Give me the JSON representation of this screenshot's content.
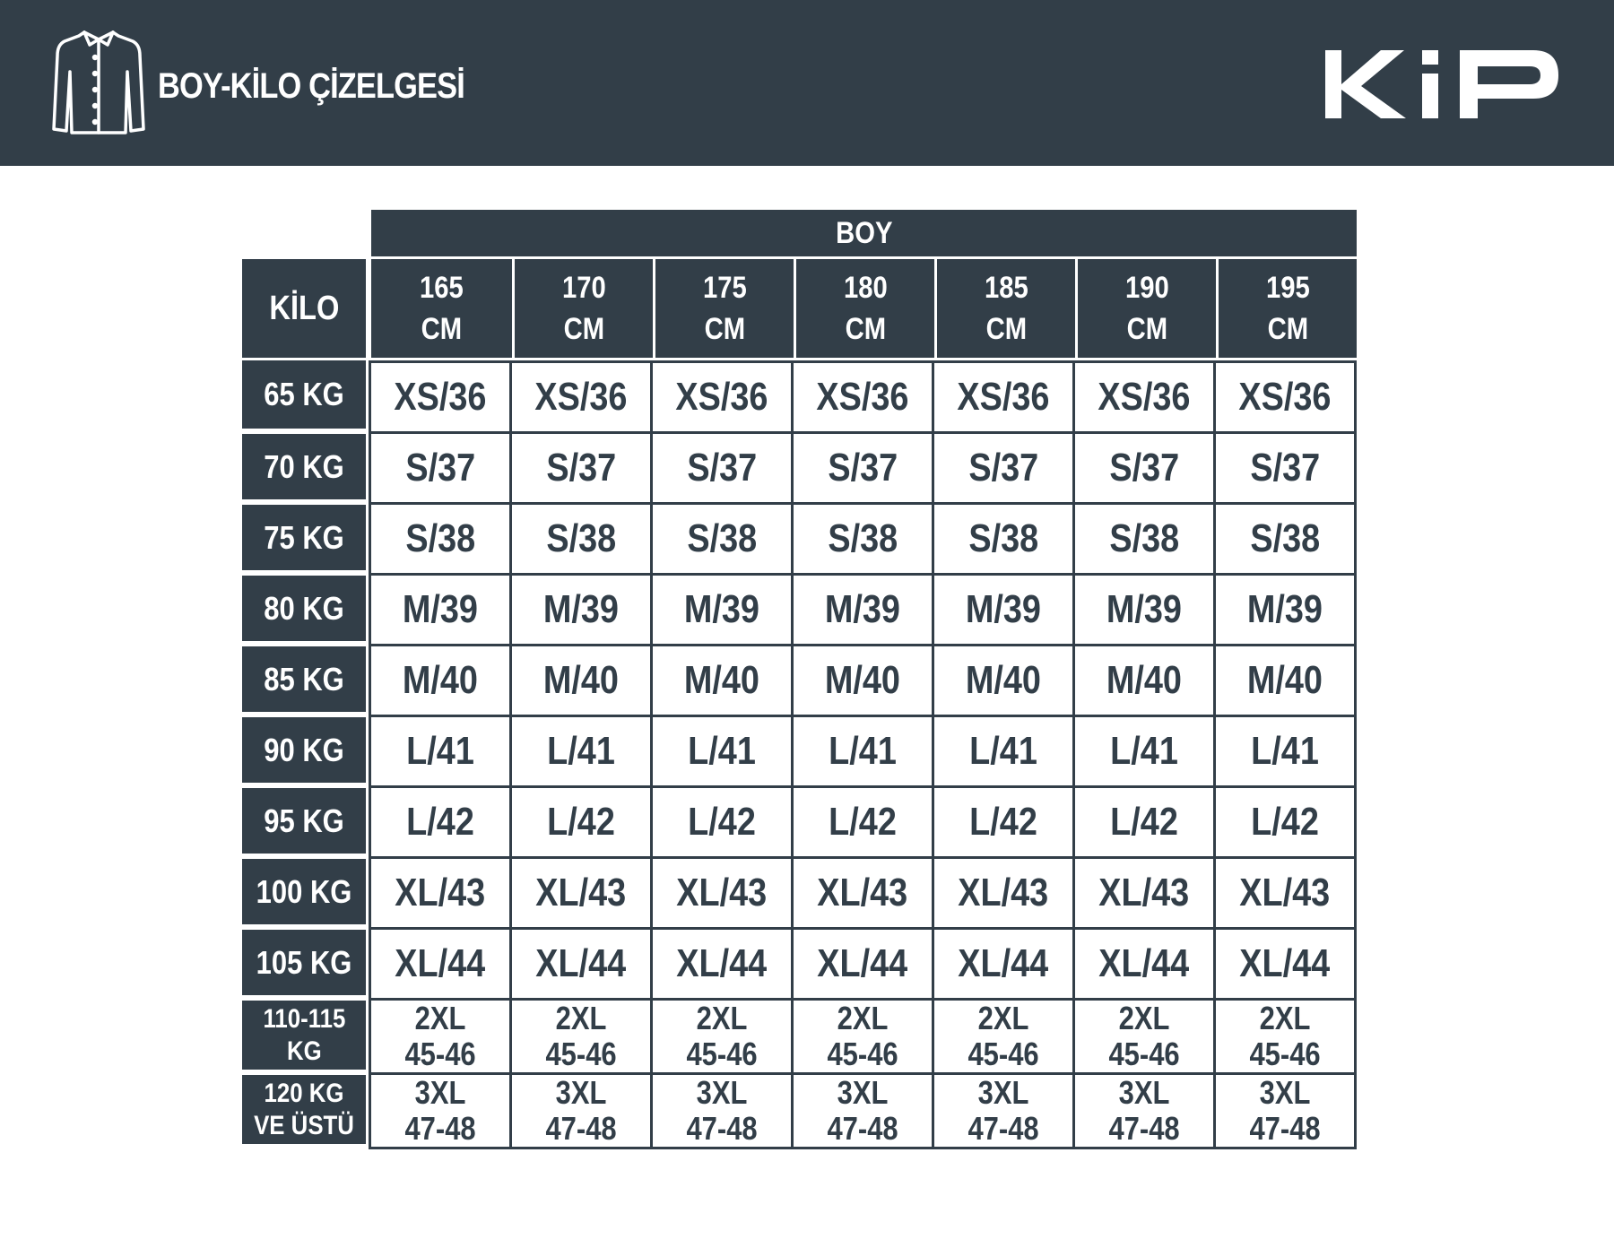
{
  "header": {
    "title": "BOY-KİLO ÇİZELGESİ",
    "icon": "shirt-icon",
    "brand": "KiP",
    "background_color": "#323e48"
  },
  "table": {
    "group_header": "BOY",
    "row_header_label": "KİLO",
    "columns": [
      {
        "value": "165",
        "unit": "CM"
      },
      {
        "value": "170",
        "unit": "CM"
      },
      {
        "value": "175",
        "unit": "CM"
      },
      {
        "value": "180",
        "unit": "CM"
      },
      {
        "value": "185",
        "unit": "CM"
      },
      {
        "value": "190",
        "unit": "CM"
      },
      {
        "value": "195",
        "unit": "CM"
      }
    ],
    "rows": [
      {
        "label": "65 KG",
        "cells": [
          "XS/36",
          "XS/36",
          "XS/36",
          "XS/36",
          "XS/36",
          "XS/36",
          "XS/36"
        ]
      },
      {
        "label": "70 KG",
        "cells": [
          "S/37",
          "S/37",
          "S/37",
          "S/37",
          "S/37",
          "S/37",
          "S/37"
        ]
      },
      {
        "label": "75 KG",
        "cells": [
          "S/38",
          "S/38",
          "S/38",
          "S/38",
          "S/38",
          "S/38",
          "S/38"
        ]
      },
      {
        "label": "80 KG",
        "cells": [
          "M/39",
          "M/39",
          "M/39",
          "M/39",
          "M/39",
          "M/39",
          "M/39"
        ]
      },
      {
        "label": "85 KG",
        "cells": [
          "M/40",
          "M/40",
          "M/40",
          "M/40",
          "M/40",
          "M/40",
          "M/40"
        ]
      },
      {
        "label": "90 KG",
        "cells": [
          "L/41",
          "L/41",
          "L/41",
          "L/41",
          "L/41",
          "L/41",
          "L/41"
        ]
      },
      {
        "label": "95 KG",
        "cells": [
          "L/42",
          "L/42",
          "L/42",
          "L/42",
          "L/42",
          "L/42",
          "L/42"
        ]
      },
      {
        "label": "100 KG",
        "cells": [
          "XL/43",
          "XL/43",
          "XL/43",
          "XL/43",
          "XL/43",
          "XL/43",
          "XL/43"
        ]
      },
      {
        "label": "105 KG",
        "cells": [
          "XL/44",
          "XL/44",
          "XL/44",
          "XL/44",
          "XL/44",
          "XL/44",
          "XL/44"
        ]
      },
      {
        "label": "110-115\nKG",
        "cells": [
          "2XL\n45-46",
          "2XL\n45-46",
          "2XL\n45-46",
          "2XL\n45-46",
          "2XL\n45-46",
          "2XL\n45-46",
          "2XL\n45-46"
        ]
      },
      {
        "label": "120 KG\nVE ÜSTÜ",
        "cells": [
          "3XL\n47-48",
          "3XL\n47-48",
          "3XL\n47-48",
          "3XL\n47-48",
          "3XL\n47-48",
          "3XL\n47-48",
          "3XL\n47-48"
        ]
      }
    ]
  }
}
